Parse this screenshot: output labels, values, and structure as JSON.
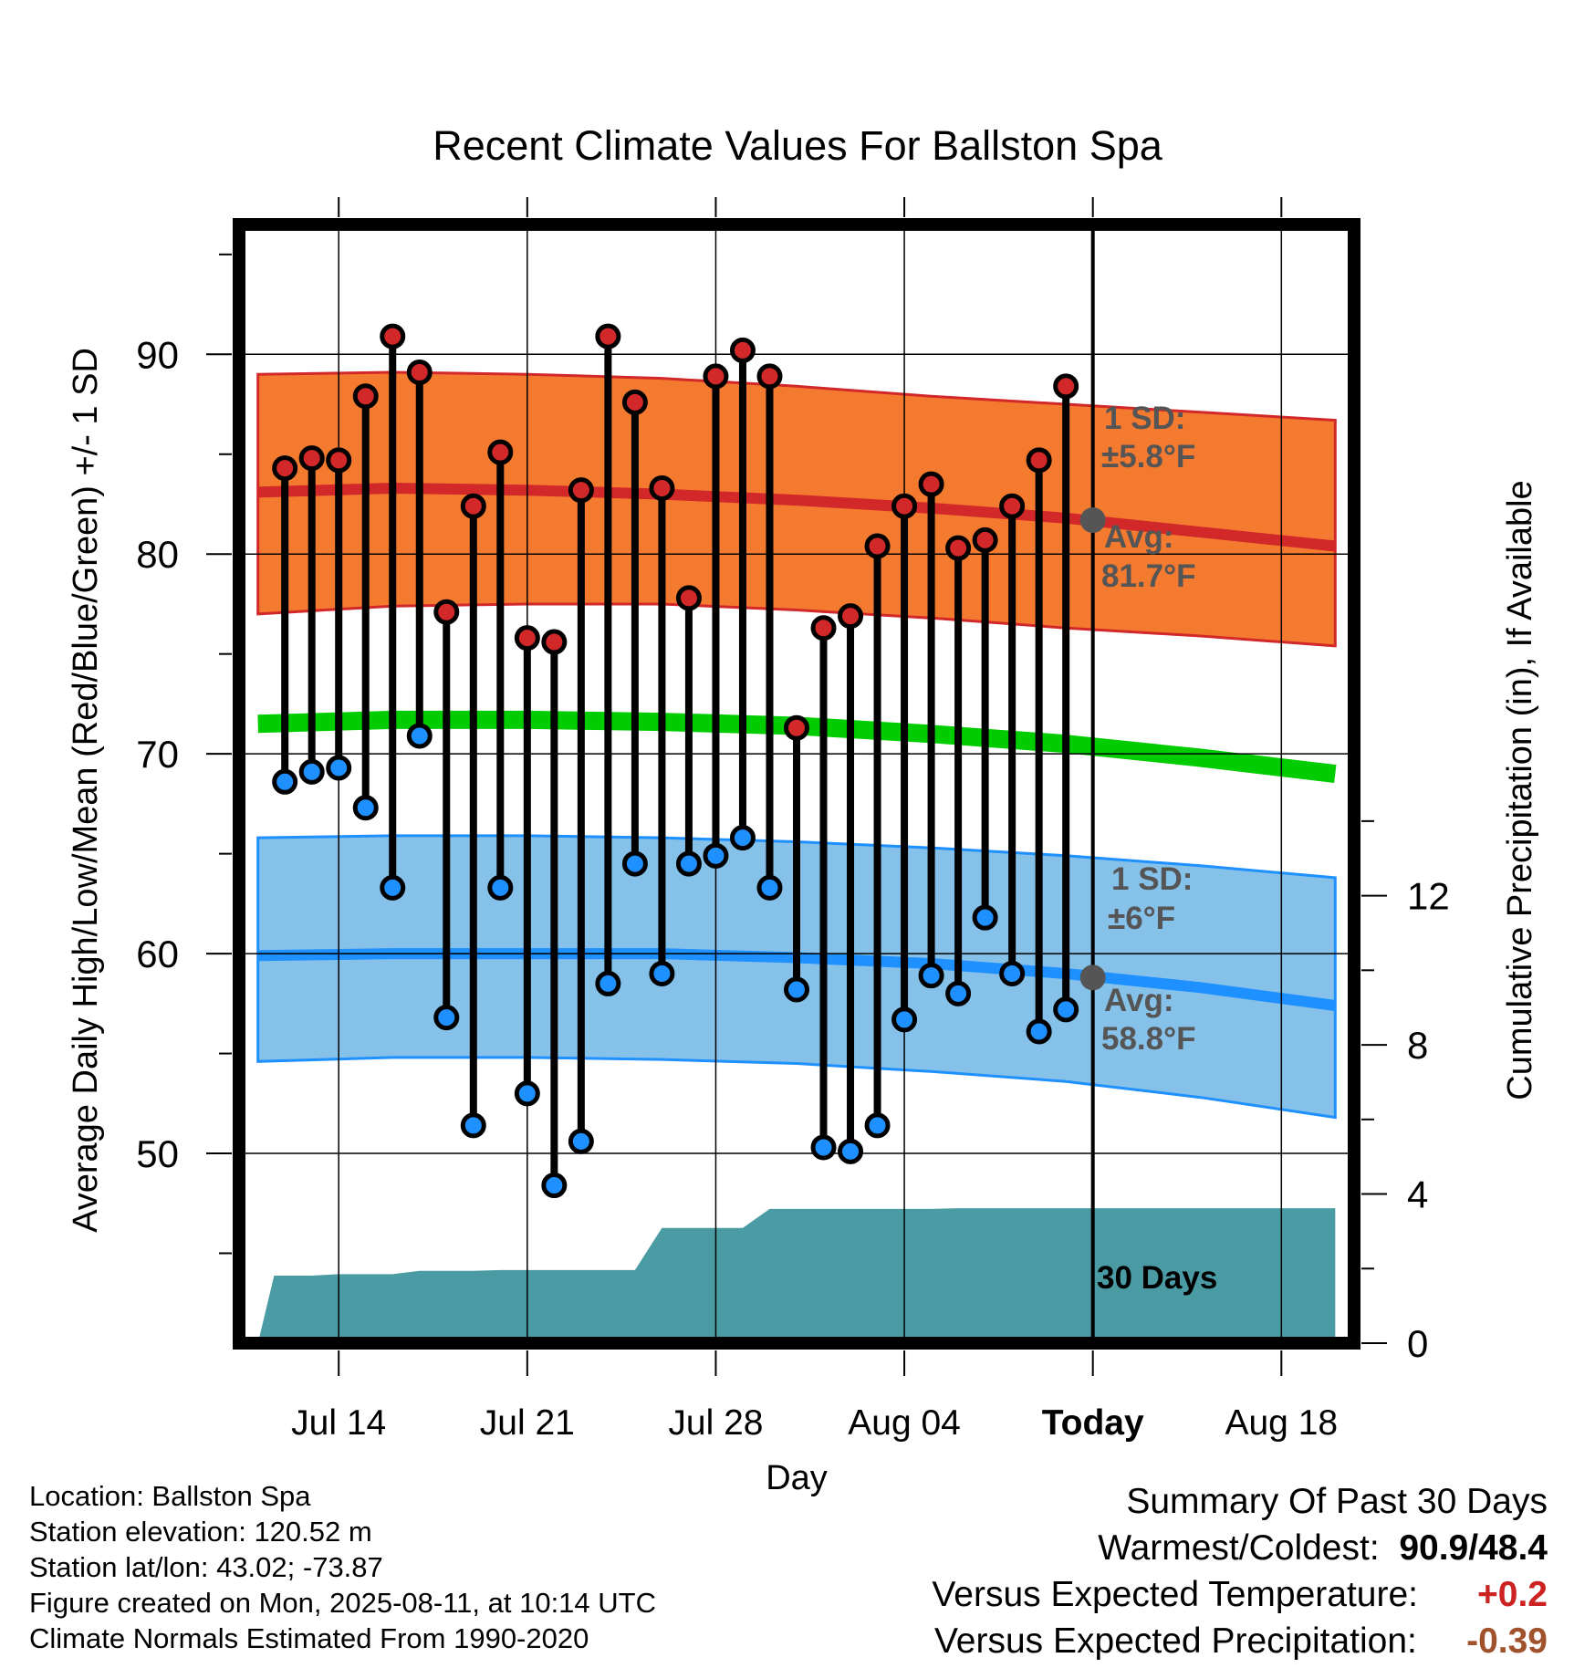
{
  "chart_data": {
    "type": "line",
    "title": "Recent Climate Values For Ballston Spa",
    "xlabel": "Day",
    "ylabel": "Average Daily High/Low/Mean (Red/Blue/Green) +/- 1 SD",
    "y2label": "Cumulative Precipitation (in), If Available",
    "x_tick_labels": [
      "Jul 14",
      "Jul 21",
      "Jul 28",
      "Aug 04",
      "Today",
      "Aug 18"
    ],
    "x_tick_days": [
      3,
      10,
      17,
      24,
      31,
      38
    ],
    "y_ticks": [
      50,
      60,
      70,
      80,
      90
    ],
    "y2_ticks": [
      0,
      4,
      8,
      12
    ],
    "ylim": [
      40.5,
      96.5
    ],
    "y2lim": [
      0,
      30
    ],
    "xlim": [
      -0.7,
      40.7
    ],
    "grid": true,
    "today_day": 31,
    "today_label": "30 Days",
    "days": [
      1,
      2,
      3,
      4,
      5,
      6,
      7,
      8,
      9,
      10,
      11,
      12,
      13,
      14,
      15,
      16,
      17,
      18,
      19,
      20,
      21,
      22,
      23,
      24,
      25,
      26,
      27,
      28,
      29,
      30
    ],
    "highs": [
      84.3,
      84.8,
      84.7,
      87.9,
      90.9,
      89.1,
      77.1,
      82.4,
      85.1,
      75.8,
      75.6,
      83.2,
      90.9,
      87.6,
      83.3,
      77.8,
      88.9,
      90.2,
      88.9,
      71.3,
      76.3,
      76.9,
      80.4,
      82.4,
      83.5,
      80.3,
      80.7,
      82.4,
      84.7,
      88.4
    ],
    "lows": [
      68.6,
      69.1,
      69.3,
      67.3,
      63.3,
      70.9,
      56.8,
      51.4,
      63.3,
      53.0,
      48.4,
      50.6,
      58.5,
      64.5,
      59.0,
      64.5,
      64.9,
      65.8,
      63.3,
      58.2,
      50.3,
      50.1,
      51.4,
      56.7,
      58.9,
      58.0,
      61.8,
      59.0,
      56.1,
      57.2
    ],
    "normal_curve_days": [
      0,
      5,
      10,
      15,
      20,
      25,
      30,
      35,
      40
    ],
    "normal_high": [
      83.1,
      83.3,
      83.2,
      83.0,
      82.7,
      82.3,
      81.8,
      81.1,
      80.4
    ],
    "normal_high_upper": [
      89.0,
      89.1,
      89.0,
      88.8,
      88.4,
      87.9,
      87.5,
      87.1,
      86.7
    ],
    "normal_high_lower": [
      77.0,
      77.4,
      77.5,
      77.5,
      77.2,
      76.8,
      76.3,
      75.9,
      75.4
    ],
    "normal_mean": [
      71.5,
      71.7,
      71.7,
      71.6,
      71.4,
      71.0,
      70.5,
      69.8,
      69.0
    ],
    "normal_low": [
      59.9,
      60.0,
      60.0,
      60.0,
      59.8,
      59.5,
      59.0,
      58.3,
      57.4
    ],
    "normal_low_upper": [
      65.8,
      65.9,
      65.9,
      65.8,
      65.6,
      65.3,
      64.9,
      64.4,
      63.8
    ],
    "normal_low_lower": [
      54.6,
      54.8,
      54.8,
      54.7,
      54.5,
      54.1,
      53.6,
      52.8,
      51.8
    ],
    "precip_days": [
      0,
      0.6,
      1,
      2,
      3,
      4,
      5,
      6,
      7,
      8,
      9,
      10,
      11,
      12,
      13,
      14,
      15,
      16,
      17,
      18,
      19,
      20,
      21,
      22,
      23,
      24,
      25,
      26,
      27,
      28,
      29,
      30,
      40
    ],
    "precip_cum": [
      0,
      1.81,
      1.81,
      1.81,
      1.85,
      1.85,
      1.85,
      1.94,
      1.94,
      1.94,
      1.96,
      1.96,
      1.96,
      1.96,
      1.96,
      1.96,
      3.09,
      3.09,
      3.09,
      3.09,
      3.6,
      3.6,
      3.6,
      3.6,
      3.6,
      3.6,
      3.6,
      3.62,
      3.62,
      3.62,
      3.62,
      3.62,
      3.62
    ],
    "annotations": {
      "high_sd_label": "1 SD:",
      "high_sd_value": "±5.8°F",
      "high_avg_label": "Avg:",
      "high_avg_value": "81.7°F",
      "low_sd_label": "1 SD:",
      "low_sd_value": "±6°F",
      "low_avg_label": "Avg:",
      "low_avg_value": "58.8°F"
    },
    "today_high_avg": 81.7,
    "today_low_avg": 58.8,
    "colors": {
      "high_band": "#f47a30",
      "high_line": "#d2282a",
      "mean_line": "#00cc00",
      "low_band": "#85c1e9",
      "low_line": "#1e90ff",
      "precip": "#4a9ba4",
      "high_dot": "#d2282a",
      "low_dot": "#1e90ff",
      "annotation": "#555555"
    }
  },
  "info": {
    "location": "Location: Ballston Spa",
    "elevation": "Station elevation: 120.52 m",
    "latlon": "Station lat/lon: 43.02; -73.87",
    "created": "Figure created on Mon, 2025-08-11, at 10:14 UTC",
    "normals": "Climate Normals Estimated From 1990-2020"
  },
  "summary": {
    "heading": "Summary Of Past 30 Days",
    "warm_cold_label": "Warmest/Coldest:",
    "warm_cold_value": "90.9/48.4",
    "temp_label": "Versus Expected Temperature:",
    "temp_value": "+0.2",
    "precip_label": "Versus Expected Precipitation:",
    "precip_value": "-0.39"
  }
}
